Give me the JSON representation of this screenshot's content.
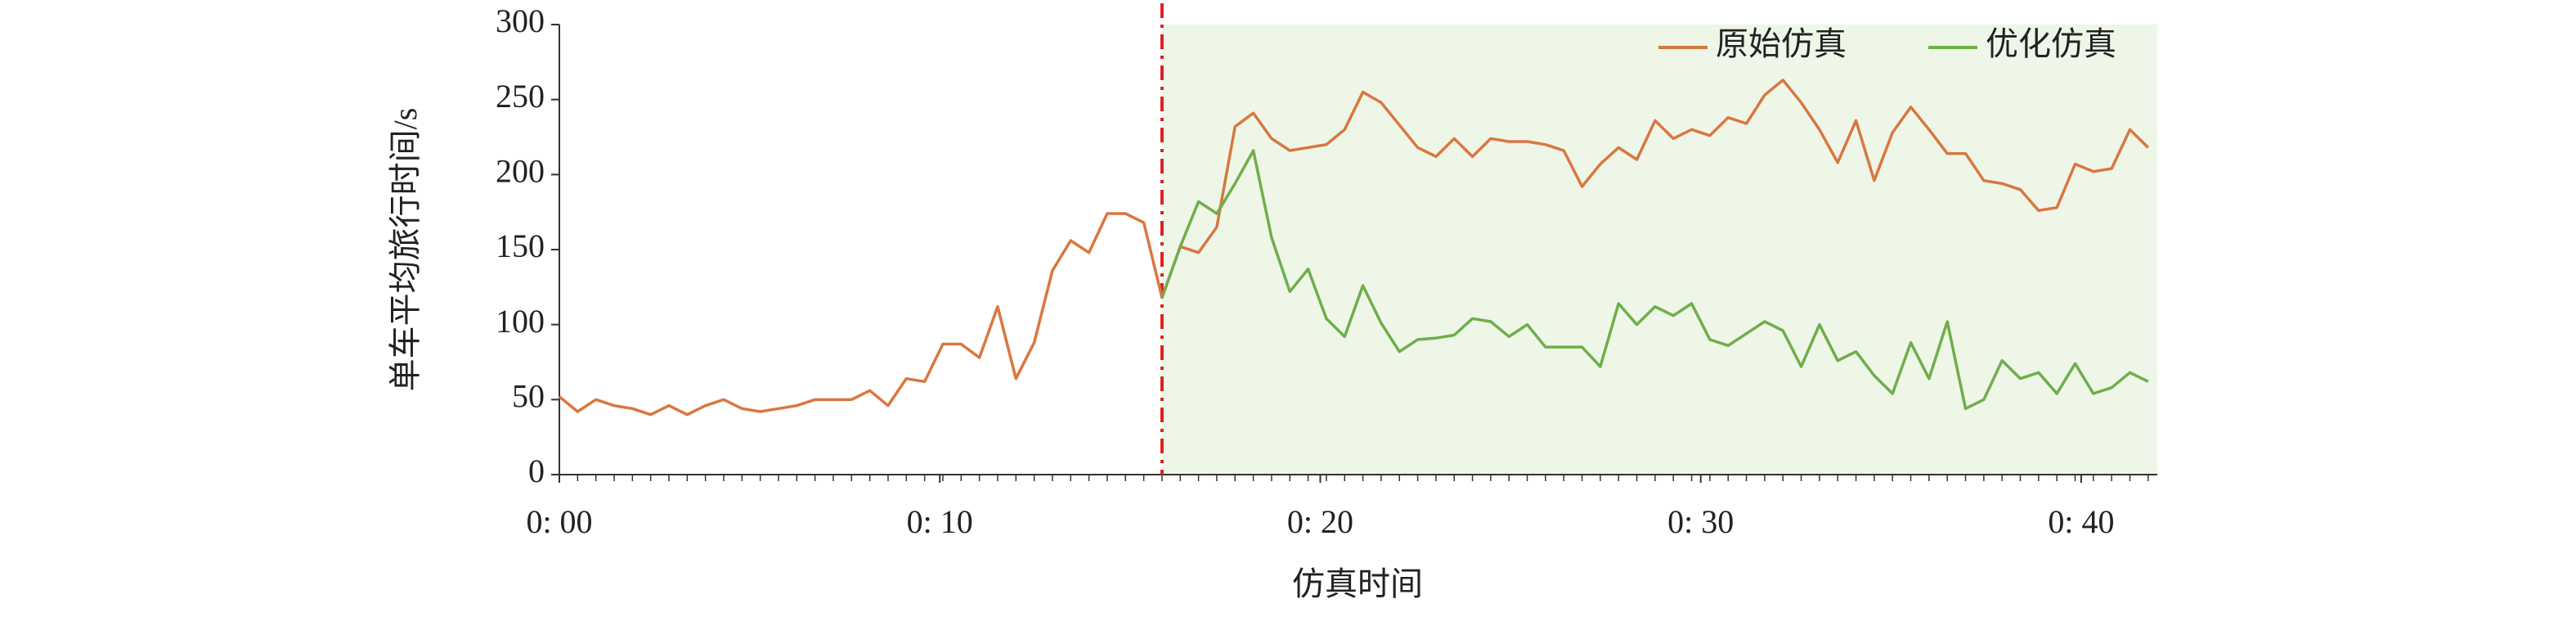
{
  "chart_data": {
    "type": "line",
    "xlabel": "仿真时间",
    "ylabel": "单车平均旅行时间/s",
    "x": [
      0,
      0.48,
      0.96,
      1.44,
      1.92,
      2.4,
      2.88,
      3.36,
      3.84,
      4.32,
      4.8,
      5.28,
      5.76,
      6.24,
      6.72,
      7.2,
      7.68,
      8.16,
      8.64,
      9.12,
      9.6,
      10.08,
      10.56,
      11.04,
      11.52,
      12,
      12.48,
      12.96,
      13.44,
      13.92,
      14.4,
      14.88,
      15.36,
      15.84,
      16.32,
      16.8,
      17.28,
      17.76,
      18.24,
      18.72,
      19.2,
      19.68,
      20.16,
      20.64,
      21.12,
      21.6,
      22.08,
      22.56,
      23.04,
      23.52,
      24,
      24.48,
      24.96,
      25.44,
      25.92,
      26.4,
      26.88,
      27.36,
      27.84,
      28.32,
      28.8,
      29.28,
      29.76,
      30.24,
      30.72,
      31.2,
      31.68,
      32.16,
      32.64,
      33.12,
      33.6,
      34.08,
      34.56,
      35.04,
      35.52,
      36,
      36.48,
      36.96,
      37.44,
      37.92,
      38.4,
      38.88,
      39.36,
      39.84,
      40.32,
      40.8,
      41.28,
      41.76
    ],
    "series": [
      {
        "name": "原始仿真",
        "color": "#d9773f",
        "values": [
          52,
          42,
          50,
          46,
          44,
          40,
          46,
          40,
          46,
          50,
          44,
          42,
          44,
          46,
          50,
          50,
          50,
          56,
          46,
          64,
          62,
          87,
          87,
          78,
          112,
          64,
          88,
          136,
          156,
          148,
          174,
          174,
          168,
          118,
          152,
          148,
          165,
          232,
          241,
          224,
          216,
          218,
          220,
          230,
          255,
          248,
          233,
          218,
          212,
          224,
          212,
          224,
          222,
          222,
          220,
          216,
          192,
          207,
          218,
          210,
          236,
          224,
          230,
          226,
          238,
          234,
          253,
          263,
          248,
          230,
          208,
          236,
          196,
          228,
          245,
          230,
          214,
          214,
          196,
          194,
          190,
          176,
          178,
          207,
          202,
          204,
          230,
          218
        ]
      },
      {
        "name": "优化仿真",
        "color": "#6fae4a",
        "values": [
          null,
          null,
          null,
          null,
          null,
          null,
          null,
          null,
          null,
          null,
          null,
          null,
          null,
          null,
          null,
          null,
          null,
          null,
          null,
          null,
          null,
          null,
          null,
          null,
          null,
          null,
          null,
          null,
          null,
          null,
          null,
          null,
          null,
          118,
          152,
          182,
          174,
          194,
          216,
          158,
          122,
          137,
          104,
          92,
          126,
          101,
          82,
          90,
          91,
          93,
          104,
          102,
          92,
          100,
          85,
          85,
          85,
          72,
          114,
          100,
          112,
          106,
          114,
          90,
          86,
          94,
          102,
          96,
          72,
          100,
          76,
          82,
          66,
          54,
          88,
          64,
          102,
          44,
          50,
          76,
          64,
          68,
          54,
          74,
          54,
          58,
          68,
          62
        ]
      }
    ],
    "xlim": [
      0,
      42
    ],
    "xticks": [
      {
        "value": 0,
        "label": "0: 00"
      },
      {
        "value": 10,
        "label": "0: 10"
      },
      {
        "value": 20,
        "label": "0: 20"
      },
      {
        "value": 30,
        "label": "0: 30"
      },
      {
        "value": 40,
        "label": "0: 40"
      }
    ],
    "ylim": [
      0,
      300
    ],
    "yticks": [
      0,
      50,
      100,
      150,
      200,
      250,
      300
    ],
    "divider_x": 15.84,
    "divider_color": "#e02020",
    "shade_color": "#eef6e8",
    "legend": "top-right"
  }
}
